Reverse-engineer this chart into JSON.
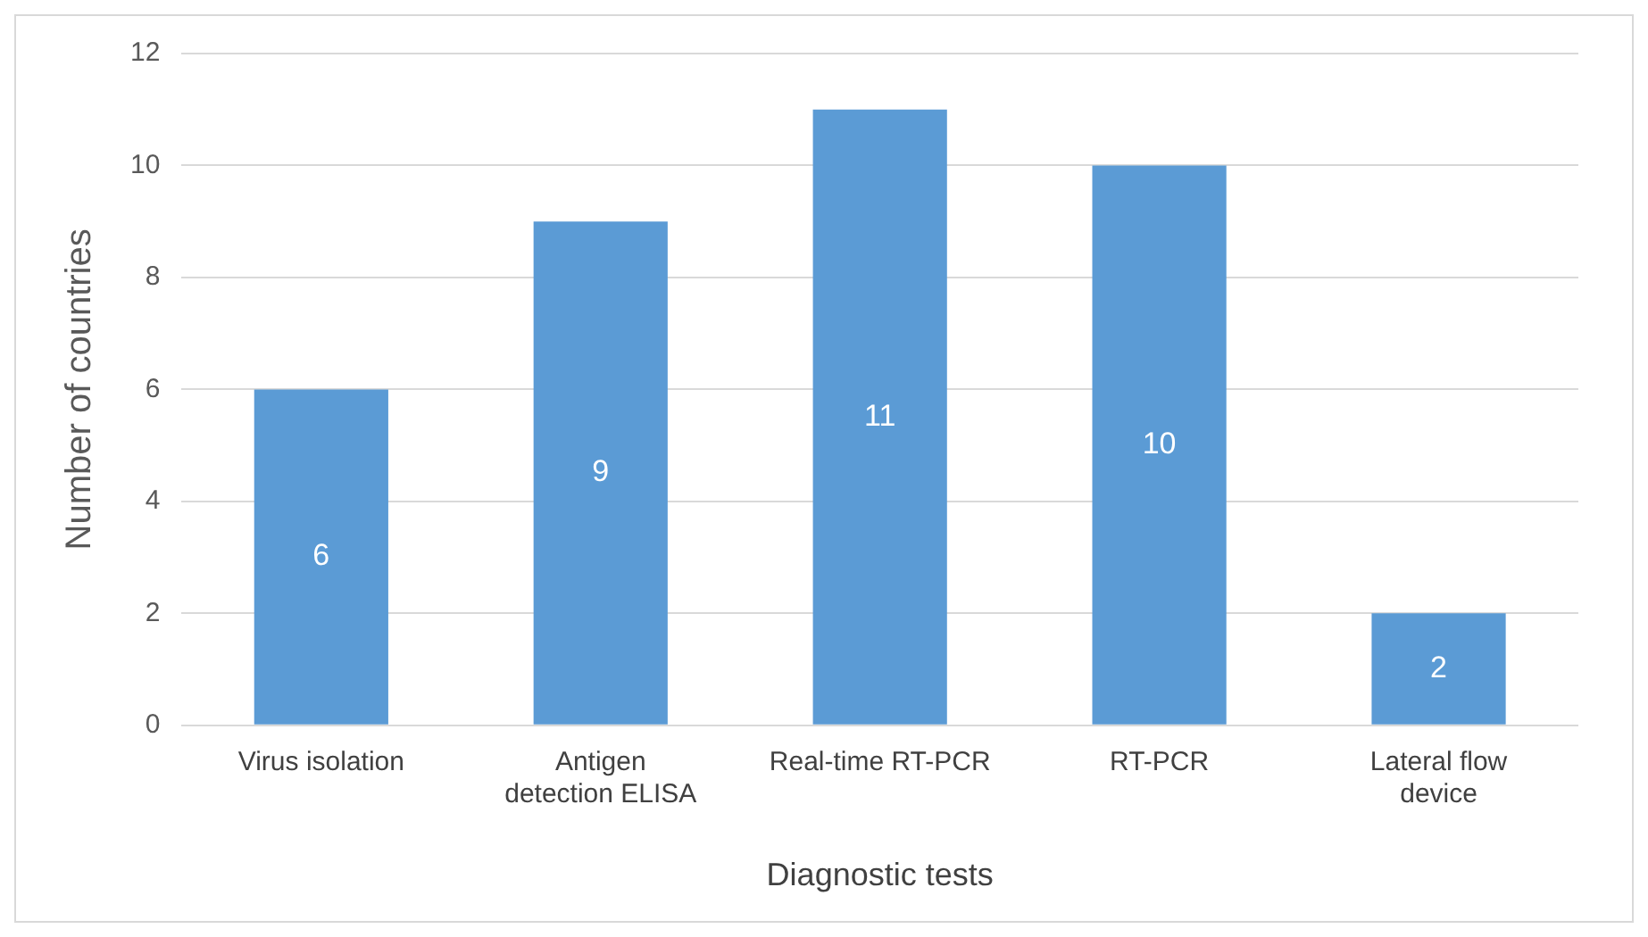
{
  "chart_data": {
    "type": "bar",
    "xlabel": "Diagnostic tests",
    "ylabel": "Number of countries",
    "categories": [
      "Virus isolation",
      "Antigen detection ELISA",
      "Real-time RT-PCR",
      "RT-PCR",
      "Lateral flow device"
    ],
    "values": [
      6,
      9,
      11,
      10,
      2
    ],
    "color": "#5b9bd5",
    "ylim": [
      0,
      12
    ],
    "yticks": [
      0,
      2,
      4,
      6,
      8,
      10,
      12
    ],
    "grid": "y",
    "data_labels": true
  }
}
